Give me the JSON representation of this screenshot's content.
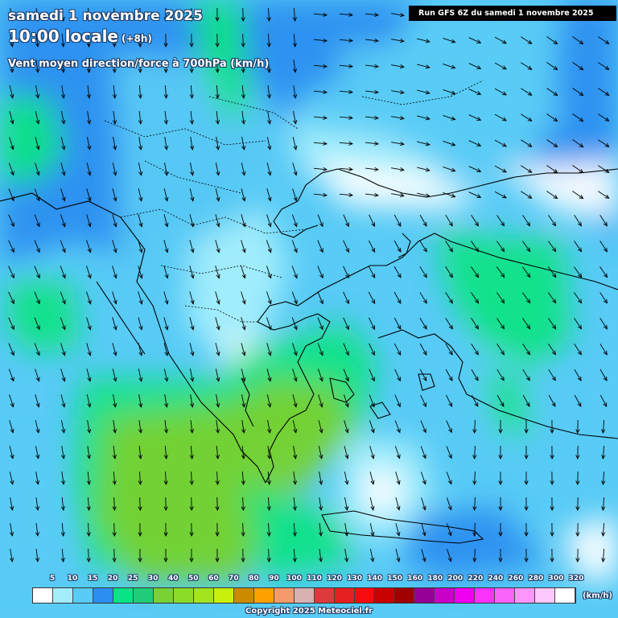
{
  "header": {
    "date_line": "samedi 1 novembre 2025",
    "time_line": "10:00 locale",
    "time_offset": "(+8h)",
    "parameter_line": "Vent moyen direction/force à 700hPa (km/h)",
    "run_info": "Run GFS 6Z du samedi 1 novembre 2025"
  },
  "legend": {
    "unit": "(km/h)",
    "labels": [
      "5",
      "10",
      "15",
      "20",
      "25",
      "30",
      "40",
      "50",
      "60",
      "70",
      "80",
      "90",
      "100",
      "110",
      "120",
      "130",
      "140",
      "150",
      "160",
      "180",
      "200",
      "220",
      "240",
      "260",
      "280",
      "300",
      "320"
    ],
    "colors": [
      "#ffffff",
      "#a4eefc",
      "#58cbf6",
      "#2b8ef0",
      "#07e385",
      "#21cc78",
      "#78d232",
      "#8bdc29",
      "#a2e41e",
      "#c8f00c",
      "#cc8a00",
      "#ffa200",
      "#f49a6b",
      "#d7b2b0",
      "#dd3a3d",
      "#e62020",
      "#f60c0c",
      "#c80000",
      "#a00000",
      "#960096",
      "#c800c8",
      "#f000f0",
      "#fa32fa",
      "#fb64fb",
      "#fc96fc",
      "#fdc8fd",
      "#ffffff"
    ]
  },
  "map": {
    "wind_field_colors": {
      "calm": "#ffffff",
      "light": "#a4eefc",
      "moderate": "#58cbf6",
      "fresh": "#2b8ef0",
      "strong": "#07e385",
      "strongest": "#78d232"
    },
    "dominant_wind_direction": "north-northwest to south-southeast"
  },
  "footer": {
    "copyright": "Copyright 2025 Meteociel.fr"
  }
}
